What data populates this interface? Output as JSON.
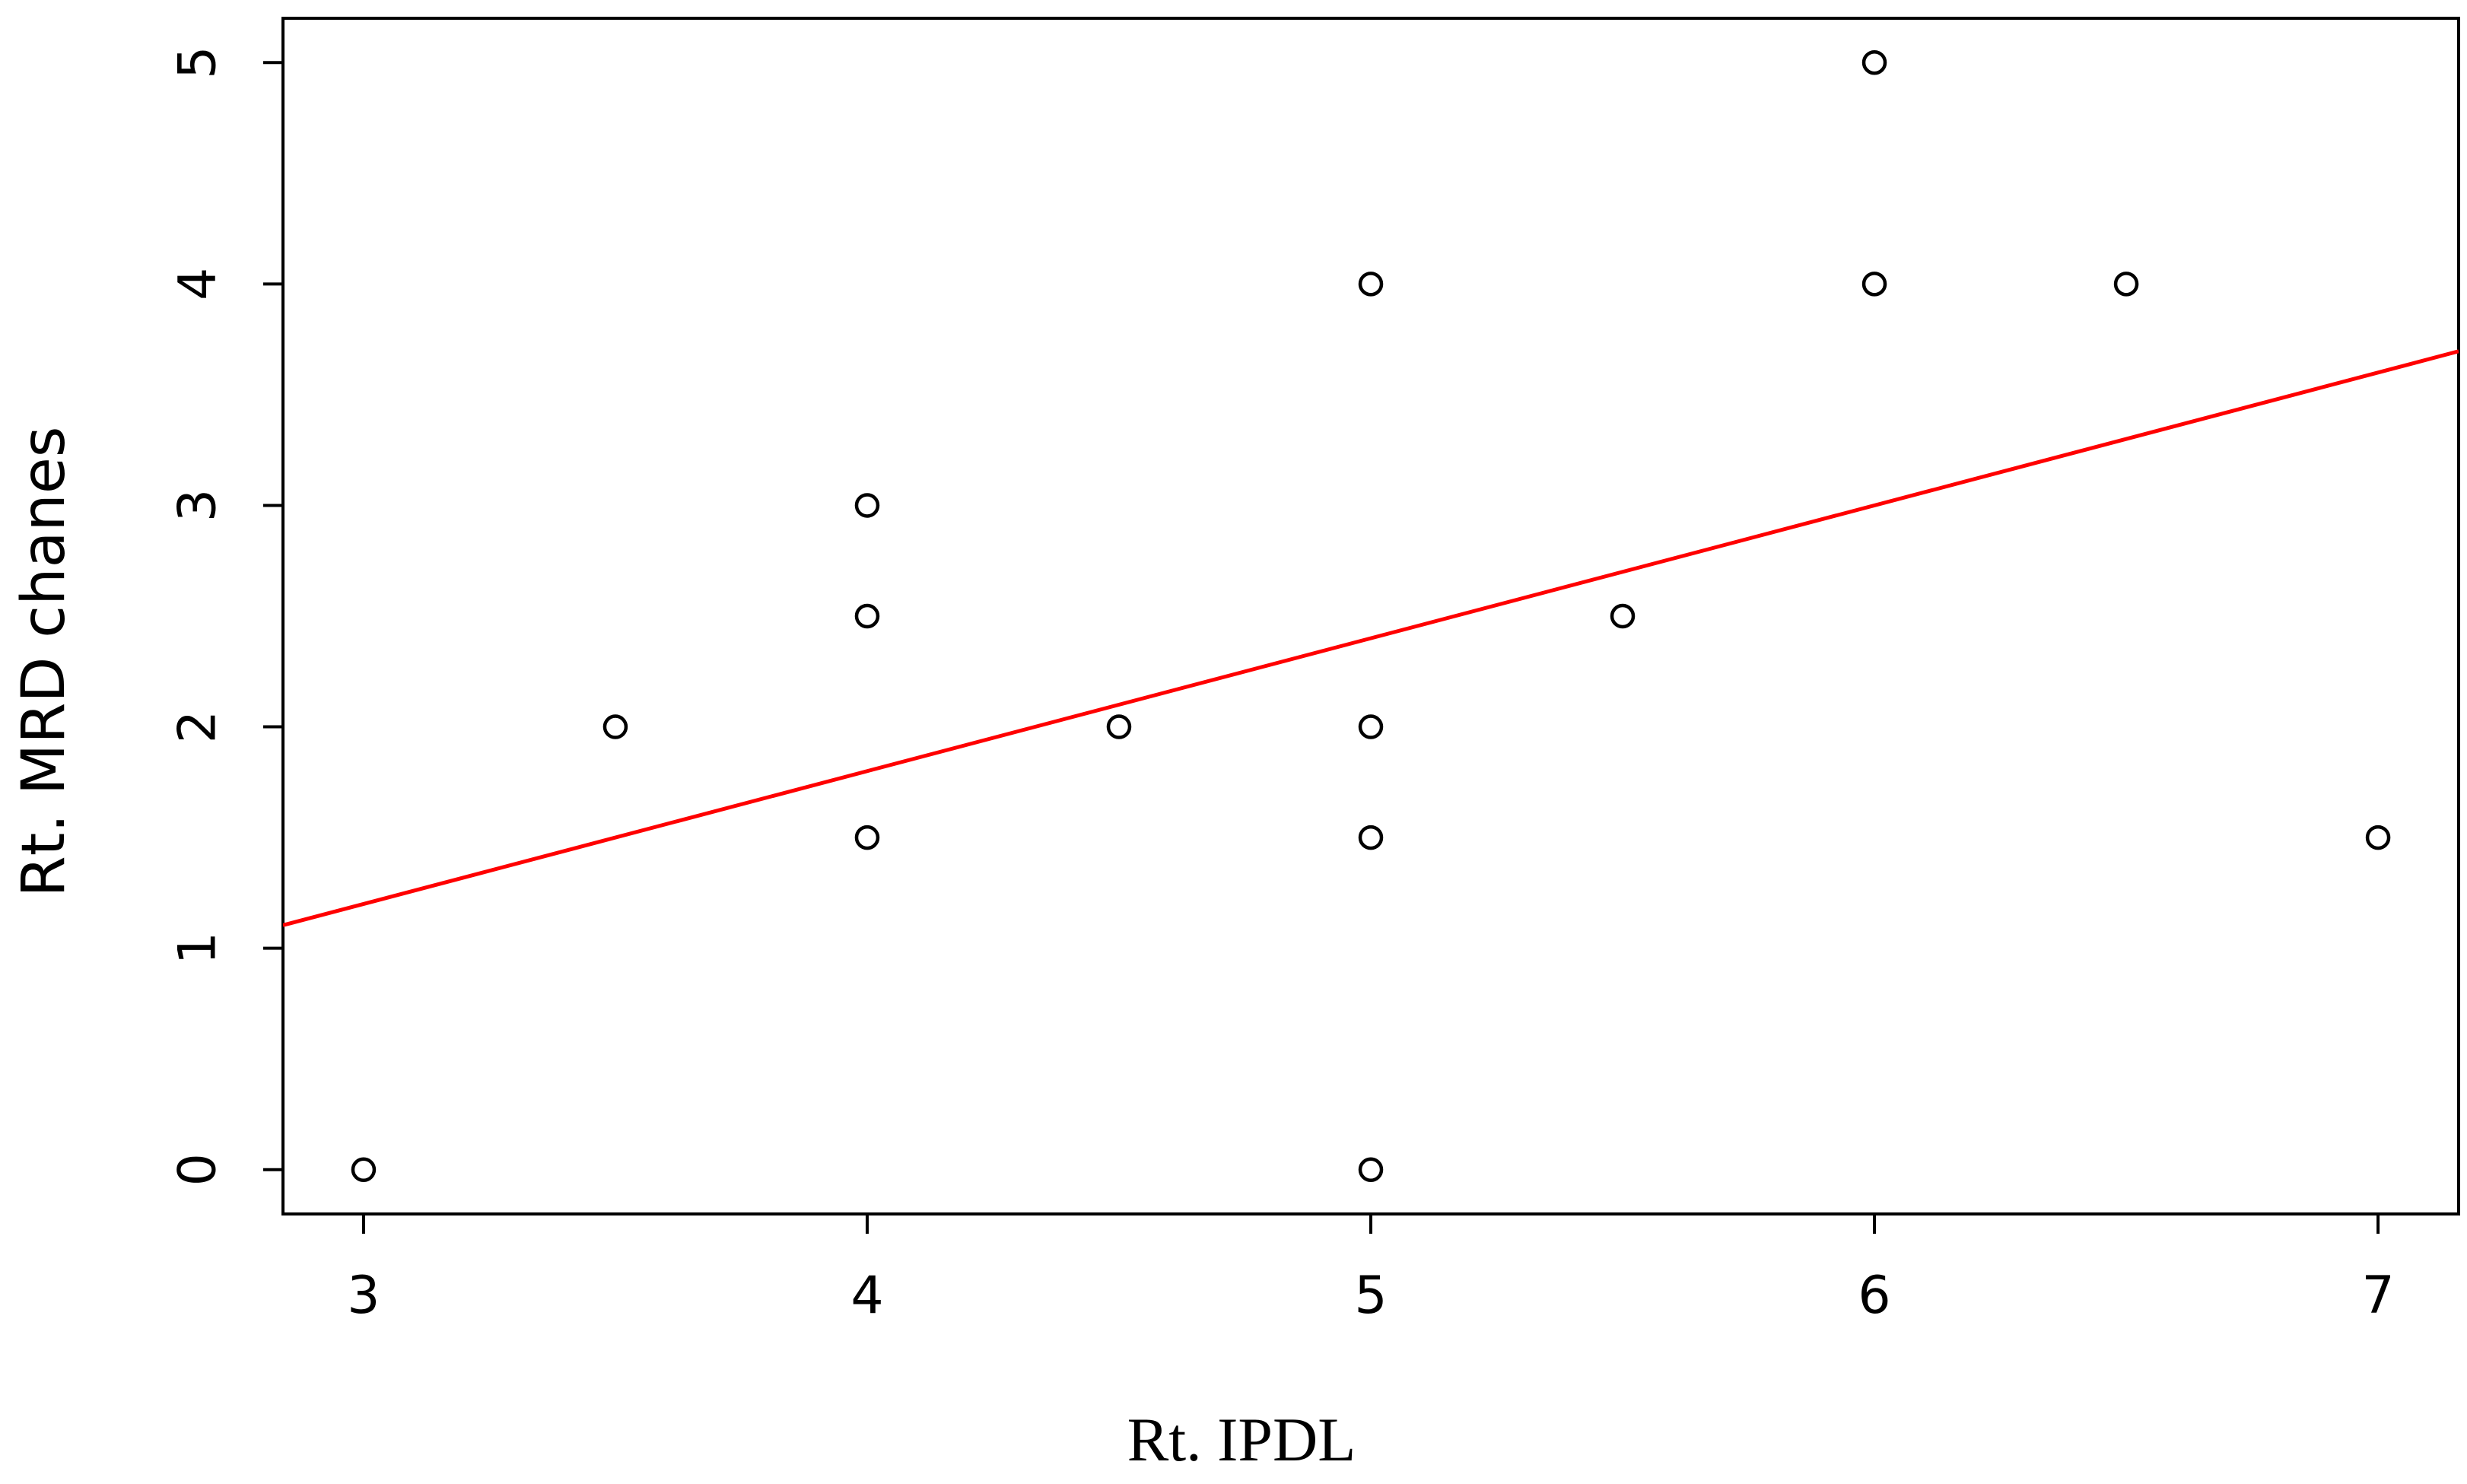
{
  "chart_data": {
    "type": "scatter",
    "title": "",
    "xlabel": "Rt. IPDL",
    "ylabel": "Rt. MRD chanes",
    "xlim": [
      2.84,
      7.16
    ],
    "ylim": [
      -0.2,
      5.2
    ],
    "x_ticks": [
      3,
      4,
      5,
      6,
      7
    ],
    "y_ticks": [
      0,
      1,
      2,
      3,
      4,
      5
    ],
    "grid": false,
    "legend": "none",
    "series": [
      {
        "marker": "open-circle",
        "color": "#000000",
        "points": [
          {
            "x": 3,
            "y": 0
          },
          {
            "x": 3.5,
            "y": 2
          },
          {
            "x": 4,
            "y": 3
          },
          {
            "x": 4,
            "y": 2.5
          },
          {
            "x": 4,
            "y": 1.5
          },
          {
            "x": 4.5,
            "y": 2
          },
          {
            "x": 5,
            "y": 4
          },
          {
            "x": 5,
            "y": 2
          },
          {
            "x": 5,
            "y": 1.5
          },
          {
            "x": 5,
            "y": 0
          },
          {
            "x": 5.5,
            "y": 2.5
          },
          {
            "x": 6,
            "y": 5
          },
          {
            "x": 6,
            "y": 4
          },
          {
            "x": 6.5,
            "y": 4
          },
          {
            "x": 7,
            "y": 1.5
          }
        ]
      }
    ],
    "fit_line": {
      "color": "#ff0000",
      "intercept": -0.6,
      "slope": 0.6
    }
  }
}
